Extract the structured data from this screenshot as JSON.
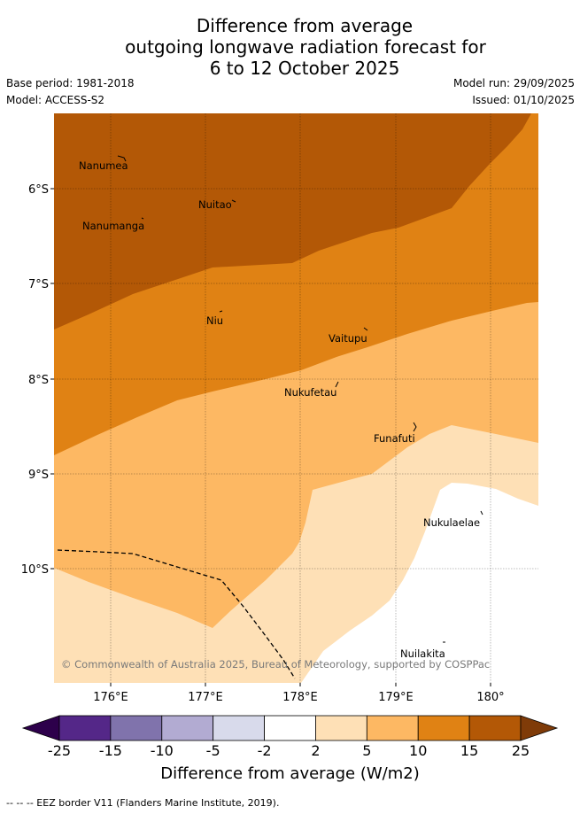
{
  "title": {
    "line1": "Difference from average",
    "line2": "outgoing longwave radiation forecast for",
    "line3": "6 to 12 October 2025"
  },
  "meta": {
    "base_period": "Base period: 1981-2018",
    "model": "Model: ACCESS-S2",
    "model_run": "Model run: 29/09/2025",
    "issued": "Issued: 01/10/2025"
  },
  "map": {
    "lat_labels": [
      "6°S",
      "7°S",
      "8°S",
      "9°S",
      "10°S"
    ],
    "lon_labels": [
      "176°E",
      "177°E",
      "178°E",
      "179°E",
      "180°"
    ],
    "places": [
      "Nanumea",
      "Nuitao",
      "Nanumanga",
      "Niu",
      "Vaitupu",
      "Nukufetau",
      "Funafuti",
      "Nukulaelae",
      "Nuilakita"
    ],
    "copyright": "© Commonwealth of Australia 2025, Bureau of Meteorology, supported by COSPPac",
    "colors": {
      "c_15_25": "#b35806",
      "c_10_15": "#e08214",
      "c_5_10": "#fdb863",
      "c_2_5": "#fee0b6",
      "c_neg2_2": "#ffffff"
    }
  },
  "colorbar": {
    "ticks": [
      "-25",
      "-15",
      "-10",
      "-5",
      "-2",
      "2",
      "5",
      "10",
      "15",
      "25"
    ],
    "colors": [
      "#2d004b",
      "#542788",
      "#8073ac",
      "#b2abd2",
      "#d8daeb",
      "#ffffff",
      "#fee0b6",
      "#fdb863",
      "#e08214",
      "#b35806",
      "#7f3b08"
    ],
    "title": "Difference from average (W/m2)"
  },
  "legend": {
    "text": "-- -- -- EEZ border V11 (Flanders Marine Institute, 2019)."
  }
}
